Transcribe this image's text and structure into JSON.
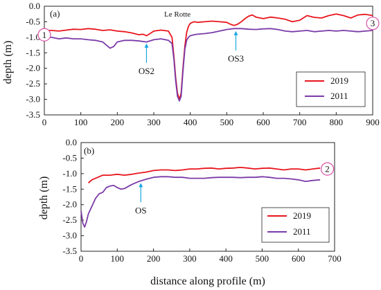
{
  "colors": {
    "2019": "#e8141c",
    "2011": "#7a3aa8",
    "arrow": "#19a7e0",
    "marker_border": "#d94fa6"
  },
  "xlabel_shared": "distance along profile (m)",
  "chart_data": [
    {
      "type": "line",
      "panel_label": "(a)",
      "site_label": "Le Rotte",
      "ylabel": "depth (m)",
      "xlim": [
        0,
        900
      ],
      "ylim": [
        -3.5,
        0.0
      ],
      "xticks": [
        "0",
        "100",
        "200",
        "300",
        "400",
        "500",
        "600",
        "700",
        "800",
        "900"
      ],
      "yticks": [
        "0.0",
        "-0.5",
        "-1.0",
        "-1.5",
        "-2.0",
        "-2.5",
        "-3.0",
        "-3.5"
      ],
      "legend": [
        "2019",
        "2011"
      ],
      "markers": [
        {
          "label": "1",
          "x": 0,
          "y": -0.92
        },
        {
          "label": "3",
          "x": 900,
          "y": -0.55
        }
      ],
      "annotations": [
        {
          "label": "OS2",
          "x": 280,
          "y_tip": -1.2
        },
        {
          "label": "OS3",
          "x": 525,
          "y_tip": -0.8
        }
      ],
      "series": [
        {
          "name": "2019",
          "x": [
            10,
            20,
            40,
            60,
            80,
            100,
            120,
            140,
            160,
            180,
            200,
            220,
            240,
            260,
            270,
            280,
            290,
            300,
            320,
            340,
            350,
            355,
            360,
            365,
            370,
            375,
            380,
            385,
            390,
            395,
            400,
            410,
            420,
            440,
            460,
            480,
            500,
            510,
            520,
            530,
            540,
            550,
            560,
            570,
            580,
            600,
            620,
            640,
            660,
            680,
            700,
            720,
            740,
            760,
            780,
            800,
            820,
            840,
            860,
            880,
            900
          ],
          "y": [
            -0.78,
            -0.78,
            -0.8,
            -0.77,
            -0.74,
            -0.75,
            -0.72,
            -0.74,
            -0.78,
            -0.76,
            -0.8,
            -0.82,
            -0.86,
            -0.92,
            -0.9,
            -0.95,
            -0.88,
            -0.8,
            -0.77,
            -0.8,
            -1.0,
            -1.6,
            -2.3,
            -2.8,
            -3.0,
            -2.8,
            -2.0,
            -1.3,
            -0.85,
            -0.65,
            -0.55,
            -0.5,
            -0.52,
            -0.5,
            -0.48,
            -0.5,
            -0.52,
            -0.58,
            -0.62,
            -0.58,
            -0.5,
            -0.4,
            -0.32,
            -0.28,
            -0.35,
            -0.4,
            -0.35,
            -0.38,
            -0.42,
            -0.5,
            -0.45,
            -0.3,
            -0.36,
            -0.38,
            -0.3,
            -0.25,
            -0.3,
            -0.38,
            -0.28,
            -0.26,
            -0.3
          ]
        },
        {
          "name": "2011",
          "x": [
            10,
            20,
            40,
            60,
            80,
            100,
            120,
            140,
            160,
            170,
            180,
            190,
            200,
            220,
            240,
            260,
            280,
            300,
            320,
            340,
            350,
            355,
            360,
            365,
            370,
            375,
            380,
            385,
            390,
            395,
            400,
            410,
            420,
            440,
            460,
            480,
            500,
            520,
            540,
            560,
            580,
            600,
            620,
            640,
            660,
            680,
            700,
            720,
            740,
            760,
            780,
            800,
            820,
            840,
            860,
            880,
            900
          ],
          "y": [
            -1.0,
            -1.0,
            -1.05,
            -1.02,
            -1.05,
            -1.05,
            -1.08,
            -1.1,
            -1.15,
            -1.25,
            -1.35,
            -1.3,
            -1.15,
            -1.1,
            -1.1,
            -1.12,
            -1.15,
            -1.08,
            -1.05,
            -1.1,
            -1.2,
            -1.7,
            -2.4,
            -2.9,
            -3.05,
            -2.9,
            -2.1,
            -1.4,
            -1.1,
            -1.0,
            -0.95,
            -0.92,
            -0.9,
            -0.88,
            -0.85,
            -0.8,
            -0.75,
            -0.72,
            -0.72,
            -0.74,
            -0.75,
            -0.73,
            -0.72,
            -0.75,
            -0.8,
            -0.82,
            -0.8,
            -0.78,
            -0.82,
            -0.8,
            -0.78,
            -0.8,
            -0.78,
            -0.8,
            -0.82,
            -0.8,
            -0.78
          ]
        }
      ]
    },
    {
      "type": "line",
      "panel_label": "(b)",
      "ylabel": "depth (m)",
      "xlabel": "distance along profile (m)",
      "xlim": [
        0,
        700
      ],
      "ylim": [
        -3.5,
        0.0
      ],
      "xticks": [
        "0",
        "100",
        "200",
        "300",
        "400",
        "500",
        "600",
        "700"
      ],
      "yticks": [
        "0.0",
        "-0.5",
        "-1.0",
        "-1.5",
        "-2.0",
        "-2.5",
        "-3.0",
        "-3.5"
      ],
      "legend": [
        "2019",
        "2011"
      ],
      "markers": [
        {
          "label": "2",
          "x": 680,
          "y": -0.85
        }
      ],
      "annotations": [
        {
          "label": "OS",
          "x": 165,
          "y_tip": -1.3
        }
      ],
      "series": [
        {
          "name": "2019",
          "x": [
            20,
            30,
            40,
            60,
            80,
            100,
            120,
            140,
            160,
            180,
            200,
            220,
            240,
            260,
            280,
            300,
            320,
            340,
            360,
            380,
            400,
            420,
            440,
            460,
            480,
            500,
            520,
            540,
            560,
            580,
            600,
            620,
            640,
            660
          ],
          "y": [
            -1.3,
            -1.2,
            -1.15,
            -1.05,
            -1.05,
            -1.02,
            -1.05,
            -1.02,
            -0.98,
            -0.95,
            -0.9,
            -0.88,
            -0.88,
            -0.9,
            -0.88,
            -0.85,
            -0.85,
            -0.83,
            -0.82,
            -0.85,
            -0.83,
            -0.82,
            -0.8,
            -0.82,
            -0.85,
            -0.83,
            -0.82,
            -0.85,
            -0.88,
            -0.85,
            -0.85,
            -0.88,
            -0.85,
            -0.82
          ]
        },
        {
          "name": "2011",
          "x": [
            0,
            5,
            10,
            15,
            20,
            30,
            40,
            50,
            60,
            70,
            80,
            90,
            100,
            110,
            120,
            140,
            160,
            180,
            200,
            220,
            240,
            260,
            280,
            300,
            320,
            340,
            360,
            380,
            400,
            420,
            440,
            460,
            480,
            500,
            520,
            540,
            560,
            580,
            600,
            620,
            640,
            660
          ],
          "y": [
            -2.2,
            -2.6,
            -2.72,
            -2.55,
            -2.3,
            -2.05,
            -1.8,
            -1.65,
            -1.6,
            -1.45,
            -1.4,
            -1.38,
            -1.45,
            -1.5,
            -1.48,
            -1.35,
            -1.25,
            -1.18,
            -1.12,
            -1.1,
            -1.1,
            -1.12,
            -1.12,
            -1.15,
            -1.15,
            -1.15,
            -1.13,
            -1.12,
            -1.12,
            -1.12,
            -1.13,
            -1.12,
            -1.12,
            -1.1,
            -1.12,
            -1.15,
            -1.15,
            -1.17,
            -1.2,
            -1.25,
            -1.22,
            -1.2
          ]
        }
      ]
    }
  ]
}
